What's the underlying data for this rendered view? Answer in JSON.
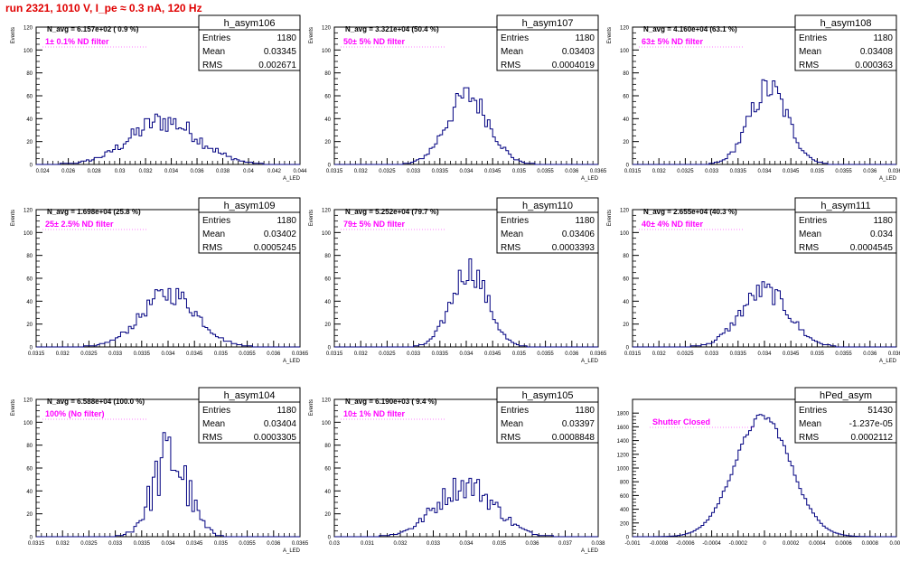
{
  "header": {
    "title": "run 2321,  1010 V, I_pe ≈ 0.3 nA, 120 Hz"
  },
  "colors": {
    "title": "#e00000",
    "note": "#ff00ff",
    "histogram": "#000080",
    "frame": "#000000"
  },
  "chart_data": [
    {
      "type": "bar",
      "name": "h_asym106",
      "ylabel": "Events",
      "xlabel": "A_LED",
      "ylim": [
        0,
        120
      ],
      "xlim": [
        0.0235,
        0.044
      ],
      "ticks": [
        0.024,
        0.026,
        0.028,
        0.03,
        0.032,
        0.034,
        0.036,
        0.038,
        0.04,
        0.042,
        0.044
      ],
      "tick_labels": [
        "0.024",
        "0.026",
        "0.028",
        "0.03",
        "0.032",
        "0.034",
        "0.036",
        "0.038",
        "0.04",
        "0.042",
        "0.044"
      ],
      "yticks": [
        0,
        20,
        40,
        60,
        80,
        100,
        120
      ],
      "stats": {
        "entries": "1180",
        "mean": "0.03345",
        "rms": "0.002671"
      },
      "navg": "N_avg = 6.157e+02 ( 0.9 %)",
      "note": "1± 0.1% ND filter",
      "peak": 44,
      "shape": "broad"
    },
    {
      "type": "bar",
      "name": "h_asym107",
      "ylabel": "Events",
      "xlabel": "A_LED",
      "ylim": [
        0,
        120
      ],
      "xlim": [
        0.0315,
        0.0365
      ],
      "ticks": [
        0.0315,
        0.032,
        0.0325,
        0.033,
        0.0335,
        0.034,
        0.0345,
        0.035,
        0.0355,
        0.036,
        0.0365
      ],
      "tick_labels": [
        "0.0315",
        "0.032",
        "0.0325",
        "0.033",
        "0.0335",
        "0.034",
        "0.0345",
        "0.035",
        "0.0355",
        "0.036",
        "0.0365"
      ],
      "yticks": [
        0,
        20,
        40,
        60,
        80,
        100,
        120
      ],
      "stats": {
        "entries": "1180",
        "mean": "0.03403",
        "rms": "0.0004019"
      },
      "navg": "N_avg = 3.321e+04 (50.4 %)",
      "note": "50± 5% ND filter",
      "peak": 67,
      "shape": "gauss"
    },
    {
      "type": "bar",
      "name": "h_asym108",
      "ylabel": "Events",
      "xlabel": "A_LED",
      "ylim": [
        0,
        120
      ],
      "xlim": [
        0.0315,
        0.0365
      ],
      "ticks": [
        0.0315,
        0.032,
        0.0325,
        0.033,
        0.0335,
        0.034,
        0.0345,
        0.035,
        0.0355,
        0.036,
        0.0365
      ],
      "tick_labels": [
        "0.0315",
        "0.032",
        "0.0325",
        "0.033",
        "0.0335",
        "0.034",
        "0.0345",
        "0.035",
        "0.0355",
        "0.036",
        "0.0365"
      ],
      "yticks": [
        0,
        20,
        40,
        60,
        80,
        100,
        120
      ],
      "stats": {
        "entries": "1180",
        "mean": "0.03408",
        "rms": "0.000363"
      },
      "navg": "N_avg = 4.160e+04 (63.1 %)",
      "note": "63± 5% ND filter",
      "peak": 74,
      "shape": "gauss"
    },
    {
      "type": "bar",
      "name": "h_asym109",
      "ylabel": "Events",
      "xlabel": "A_LED",
      "ylim": [
        0,
        120
      ],
      "xlim": [
        0.0315,
        0.0365
      ],
      "ticks": [
        0.0315,
        0.032,
        0.0325,
        0.033,
        0.0335,
        0.034,
        0.0345,
        0.035,
        0.0355,
        0.036,
        0.0365
      ],
      "tick_labels": [
        "0.0315",
        "0.032",
        "0.0325",
        "0.033",
        "0.0335",
        "0.034",
        "0.0345",
        "0.035",
        "0.0355",
        "0.036",
        "0.0365"
      ],
      "yticks": [
        0,
        20,
        40,
        60,
        80,
        100,
        120
      ],
      "stats": {
        "entries": "1180",
        "mean": "0.03402",
        "rms": "0.0005245"
      },
      "navg": "N_avg = 1.698e+04 (25.8 %)",
      "note": "25± 2.5% ND filter",
      "peak": 51,
      "shape": "gauss"
    },
    {
      "type": "bar",
      "name": "h_asym110",
      "ylabel": "Events",
      "xlabel": "A_LED",
      "ylim": [
        0,
        120
      ],
      "xlim": [
        0.0315,
        0.0365
      ],
      "ticks": [
        0.0315,
        0.032,
        0.0325,
        0.033,
        0.0335,
        0.034,
        0.0345,
        0.035,
        0.0355,
        0.036,
        0.0365
      ],
      "tick_labels": [
        "0.0315",
        "0.032",
        "0.0325",
        "0.033",
        "0.0335",
        "0.034",
        "0.0345",
        "0.035",
        "0.0355",
        "0.036",
        "0.0365"
      ],
      "yticks": [
        0,
        20,
        40,
        60,
        80,
        100,
        120
      ],
      "stats": {
        "entries": "1180",
        "mean": "0.03406",
        "rms": "0.0003393"
      },
      "navg": "N_avg = 5.252e+04 (79.7 %)",
      "note": "79± 5% ND filter",
      "peak": 77,
      "shape": "gauss"
    },
    {
      "type": "bar",
      "name": "h_asym111",
      "ylabel": "Events",
      "xlabel": "A_LED",
      "ylim": [
        0,
        120
      ],
      "xlim": [
        0.0315,
        0.0365
      ],
      "ticks": [
        0.0315,
        0.032,
        0.0325,
        0.033,
        0.0335,
        0.034,
        0.0345,
        0.035,
        0.0355,
        0.036,
        0.0365
      ],
      "tick_labels": [
        "0.0315",
        "0.032",
        "0.0325",
        "0.033",
        "0.0335",
        "0.034",
        "0.0345",
        "0.035",
        "0.0355",
        "0.036",
        "0.0365"
      ],
      "yticks": [
        0,
        20,
        40,
        60,
        80,
        100,
        120
      ],
      "stats": {
        "entries": "1180",
        "mean": "0.034",
        "rms": "0.0004545"
      },
      "navg": "N_avg = 2.655e+04 (40.3 %)",
      "note": "40± 4% ND filter",
      "peak": 57,
      "shape": "gauss"
    },
    {
      "type": "bar",
      "name": "h_asym104",
      "ylabel": "Events",
      "xlabel": "A_LED",
      "ylim": [
        0,
        120
      ],
      "xlim": [
        0.0315,
        0.0365
      ],
      "ticks": [
        0.0315,
        0.032,
        0.0325,
        0.033,
        0.0335,
        0.034,
        0.0345,
        0.035,
        0.0355,
        0.036,
        0.0365
      ],
      "tick_labels": [
        "0.0315",
        "0.032",
        "0.0325",
        "0.033",
        "0.0335",
        "0.034",
        "0.0345",
        "0.035",
        "0.0355",
        "0.036",
        "0.0365"
      ],
      "yticks": [
        0,
        20,
        40,
        60,
        80,
        100,
        120
      ],
      "stats": {
        "entries": "1180",
        "mean": "0.03404",
        "rms": "0.0003305"
      },
      "navg": "N_avg = 6.588e+04 (100.0 %)",
      "note": "100% (No filter)",
      "peak": 91,
      "shape": "spiky"
    },
    {
      "type": "bar",
      "name": "h_asym105",
      "ylabel": "Events",
      "xlabel": "A_LED",
      "ylim": [
        0,
        120
      ],
      "xlim": [
        0.03,
        0.038
      ],
      "ticks": [
        0.03,
        0.031,
        0.032,
        0.033,
        0.034,
        0.035,
        0.036,
        0.037,
        0.038
      ],
      "tick_labels": [
        "0.03",
        "0.031",
        "0.032",
        "0.033",
        "0.034",
        "0.035",
        "0.036",
        "0.037",
        "0.038"
      ],
      "yticks": [
        0,
        20,
        40,
        60,
        80,
        100,
        120
      ],
      "stats": {
        "entries": "1180",
        "mean": "0.03397",
        "rms": "0.0008848"
      },
      "navg": "N_avg = 6.190e+03 ( 9.4 %)",
      "note": "10± 1% ND filter",
      "peak": 51,
      "shape": "broad"
    },
    {
      "type": "bar",
      "name": "hPed_asym",
      "ylabel": "",
      "xlabel": "",
      "ylim": [
        0,
        2000
      ],
      "xlim": [
        -0.001,
        0.001
      ],
      "ticks": [
        -0.001,
        -0.0008,
        -0.0006,
        -0.0004,
        -0.0002,
        0,
        0.0002,
        0.0004,
        0.0006,
        0.0008,
        0.001
      ],
      "tick_labels": [
        "-0.001",
        "-0.0008",
        "-0.0006",
        "-0.0004",
        "-0.0002",
        "0",
        "0.0002",
        "0.0004",
        "0.0006",
        "0.0008",
        "0.001"
      ],
      "yticks": [
        0,
        200,
        400,
        600,
        800,
        1000,
        1200,
        1400,
        1600,
        1800
      ],
      "stats": {
        "entries": "51430",
        "mean": "-1.237e-05",
        "rms": "0.0002112"
      },
      "navg": "",
      "note": "Shutter Closed",
      "peak": 1780,
      "shape": "smooth"
    }
  ]
}
